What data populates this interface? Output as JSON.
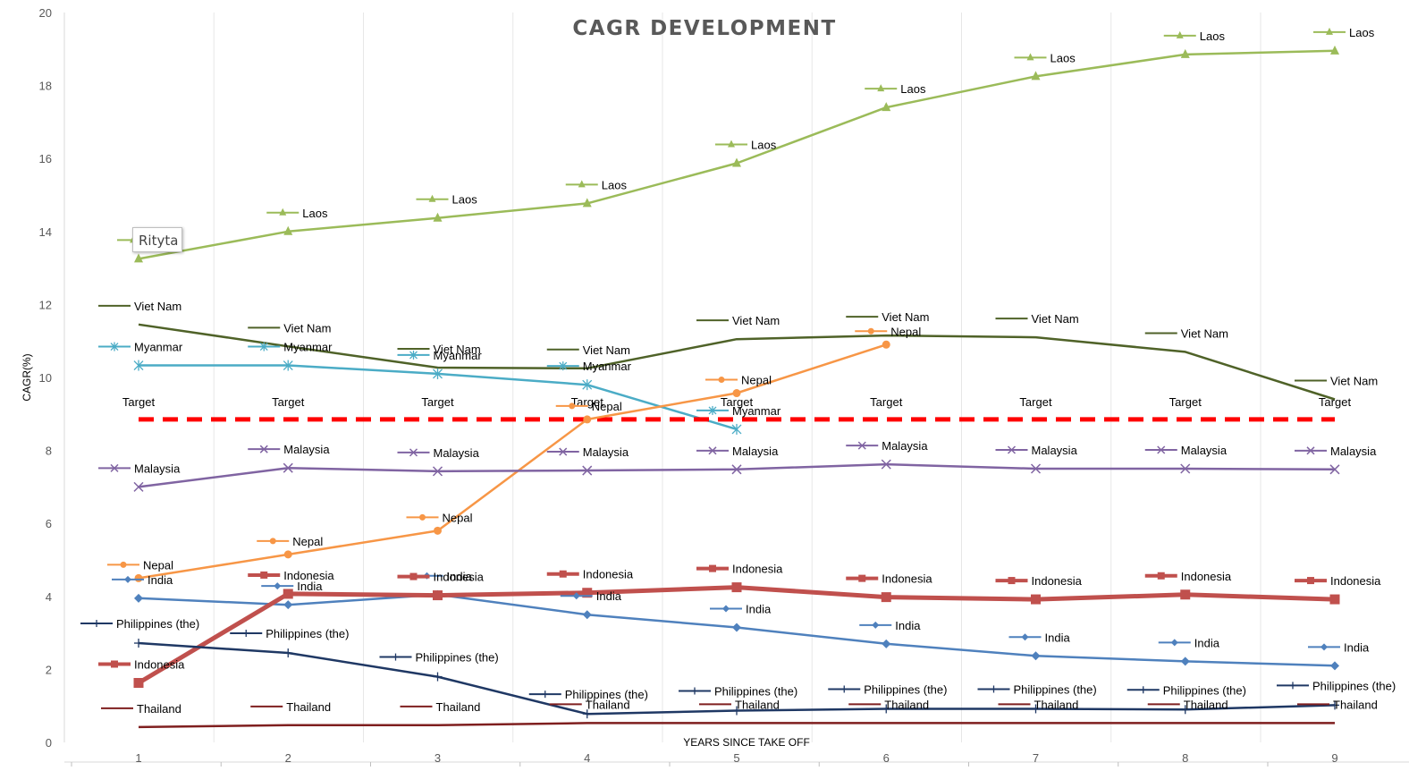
{
  "chart_data": {
    "type": "line",
    "title": "CAGR DEVELOPMENT",
    "xlabel": "YEARS SINCE TAKE OFF",
    "ylabel": "CAGR(%)",
    "x": [
      1,
      2,
      3,
      4,
      5,
      6,
      7,
      8,
      9
    ],
    "ylim": [
      0,
      20
    ],
    "yticks": [
      0,
      2,
      4,
      6,
      8,
      10,
      12,
      14,
      16,
      18,
      20
    ],
    "grid": "vertical",
    "legend": "none",
    "series": [
      {
        "name": "Laos",
        "color": "#9BBB59",
        "marker": "triangle",
        "width": 2.5,
        "values": [
          13.25,
          14.0,
          14.37,
          14.77,
          15.87,
          17.4,
          18.25,
          18.85,
          18.95
        ],
        "labels": [
          "Laos",
          "Laos",
          "Laos",
          "Laos",
          "Laos",
          "Laos",
          "Laos",
          "Laos",
          "Laos"
        ]
      },
      {
        "name": "Viet Nam",
        "color": "#4F6228",
        "marker": "none",
        "width": 2.5,
        "values": [
          11.45,
          10.85,
          10.27,
          10.25,
          11.05,
          11.15,
          11.1,
          10.7,
          9.4
        ],
        "labels": [
          "Viet Nam",
          "Viet Nam",
          "Viet Nam",
          "Viet Nam",
          "Viet Nam",
          "Viet Nam",
          "Viet Nam",
          "Viet Nam",
          "Viet Nam"
        ]
      },
      {
        "name": "Myanmar",
        "color": "#4BACC6",
        "marker": "star",
        "width": 2.5,
        "values": [
          10.33,
          10.33,
          10.1,
          9.8,
          8.58,
          null,
          null,
          null,
          null
        ],
        "labels": [
          "Myanmar",
          "Myanmar",
          "Myanmar",
          "Myanmar",
          "Myanmar",
          "",
          "",
          "",
          ""
        ]
      },
      {
        "name": "Target",
        "color": "#FF0000",
        "marker": "none",
        "width": 5,
        "dash": true,
        "values": [
          8.85,
          8.85,
          8.85,
          8.85,
          8.85,
          8.85,
          8.85,
          8.85,
          8.85
        ],
        "labels": [
          "Target",
          "Target",
          "Target",
          "Target",
          "Target",
          "Target",
          "Target",
          "Target",
          "Target"
        ]
      },
      {
        "name": "Nepal",
        "color": "#F79646",
        "marker": "circle",
        "width": 2.5,
        "values": [
          4.5,
          5.15,
          5.8,
          8.85,
          9.57,
          10.9,
          null,
          null,
          null
        ],
        "labels": [
          "Nepal",
          "Nepal",
          "Nepal",
          "Nepal",
          "Nepal",
          "Nepal",
          "",
          "",
          ""
        ]
      },
      {
        "name": "Malaysia",
        "color": "#8064A2",
        "marker": "x",
        "width": 2.5,
        "values": [
          7.0,
          7.52,
          7.43,
          7.45,
          7.48,
          7.62,
          7.5,
          7.5,
          7.48
        ],
        "labels": [
          "Malaysia",
          "Malaysia",
          "Malaysia",
          "Malaysia",
          "Malaysia",
          "Malaysia",
          "Malaysia",
          "Malaysia",
          "Malaysia"
        ]
      },
      {
        "name": "India",
        "color": "#4F81BD",
        "marker": "diamond",
        "width": 2.5,
        "values": [
          3.95,
          3.77,
          4.05,
          3.5,
          3.15,
          2.7,
          2.37,
          2.22,
          2.1
        ],
        "labels": [
          "India",
          "India",
          "India",
          "India",
          "India",
          "India",
          "India",
          "India",
          "India"
        ]
      },
      {
        "name": "Indonesia",
        "color": "#C0504D",
        "marker": "square",
        "width": 5,
        "values": [
          1.63,
          4.07,
          4.03,
          4.1,
          4.25,
          3.98,
          3.92,
          4.05,
          3.92
        ],
        "labels": [
          "Indonesia",
          "Indonesia",
          "Indonesia",
          "Indonesia",
          "Indonesia",
          "Indonesia",
          "Indonesia",
          "Indonesia",
          "Indonesia"
        ]
      },
      {
        "name": "Philippines (the)",
        "color": "#1F3864",
        "marker": "plus",
        "width": 2.5,
        "values": [
          2.72,
          2.45,
          1.8,
          0.78,
          0.87,
          0.92,
          0.92,
          0.9,
          1.02
        ],
        "labels": [
          "Philippines (the)",
          "Philippines (the)",
          "Philippines (the)",
          "Philippines (the)",
          "Philippines (the)",
          "Philippines (the)",
          "Philippines (the)",
          "Philippines (the)",
          "Philippines (the)"
        ]
      },
      {
        "name": "Thailand",
        "color": "#7F1F1F",
        "marker": "none",
        "width": 2.5,
        "values": [
          0.42,
          0.47,
          0.47,
          0.53,
          0.53,
          0.53,
          0.53,
          0.53,
          0.53
        ],
        "labels": [
          "Thailand",
          "Thailand",
          "Thailand",
          "Thailand",
          "Thailand",
          "Thailand",
          "Thailand",
          "Thailand",
          "Thailand"
        ]
      }
    ]
  },
  "tooltip": {
    "text": "Rityta"
  }
}
